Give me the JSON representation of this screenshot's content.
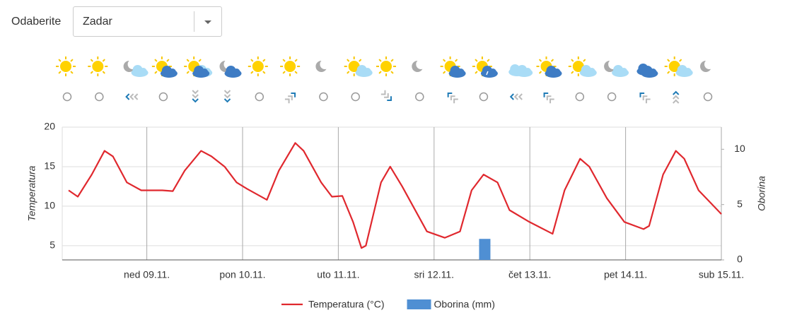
{
  "selector": {
    "label": "Odaberite",
    "value": "Zadar"
  },
  "chart_data": {
    "type": "line",
    "y_label": "Temperatura",
    "y2_label": "Oborina",
    "xlim": [
      2.8,
      168
    ],
    "xticks": [
      {
        "value": 24,
        "label": "ned 09.11."
      },
      {
        "value": 48,
        "label": "pon 10.11."
      },
      {
        "value": 72,
        "label": "uto 11.11."
      },
      {
        "value": 96,
        "label": "sri 12.11."
      },
      {
        "value": 120,
        "label": "čet 13.11."
      },
      {
        "value": 144,
        "label": "pet 14.11."
      },
      {
        "value": 168,
        "label": "sub 15.11."
      }
    ],
    "ylim": [
      3.2,
      20
    ],
    "yticks": [
      5,
      10,
      15,
      20
    ],
    "y2lim": [
      0,
      12
    ],
    "y2ticks": [
      0,
      5,
      10
    ],
    "grid": true,
    "series": [
      {
        "name": "Temperatura (°C)",
        "type": "line",
        "color": "#e0282e",
        "x": [
          4.4,
          6.7,
          10.2,
          13.4,
          15.5,
          19,
          22.6,
          27.9,
          30.5,
          33.5,
          37.6,
          40.2,
          43.5,
          46.5,
          49.1,
          54.1,
          57.1,
          61.2,
          63.3,
          67.7,
          70.4,
          73,
          75.7,
          77.8,
          78.9,
          82.7,
          85,
          88,
          94.2,
          98.7,
          102.5,
          105.4,
          108.4,
          111.9,
          114.9,
          119.9,
          125.7,
          128.7,
          132.6,
          134.9,
          139.3,
          143.7,
          148.5,
          149.9,
          153.4,
          156.6,
          158.7,
          162.3,
          168
        ],
        "values": [
          12,
          11.2,
          14,
          17,
          16.3,
          13,
          12,
          12,
          11.9,
          14.5,
          17,
          16.3,
          15,
          13,
          12.2,
          10.8,
          14.5,
          18,
          17,
          13,
          11.2,
          11.3,
          8,
          4.7,
          5,
          13,
          15,
          12.5,
          6.8,
          6,
          6.8,
          12,
          14,
          13,
          9.5,
          8,
          6.5,
          12,
          16,
          15,
          11,
          8,
          7.1,
          7.5,
          14,
          17,
          16,
          12,
          9
        ]
      },
      {
        "name": "Oborina (mm)",
        "type": "bar",
        "axis": "y2",
        "color": "#4f8fd3",
        "x": [
          108.7
        ],
        "values": [
          1.9
        ]
      }
    ]
  }
}
